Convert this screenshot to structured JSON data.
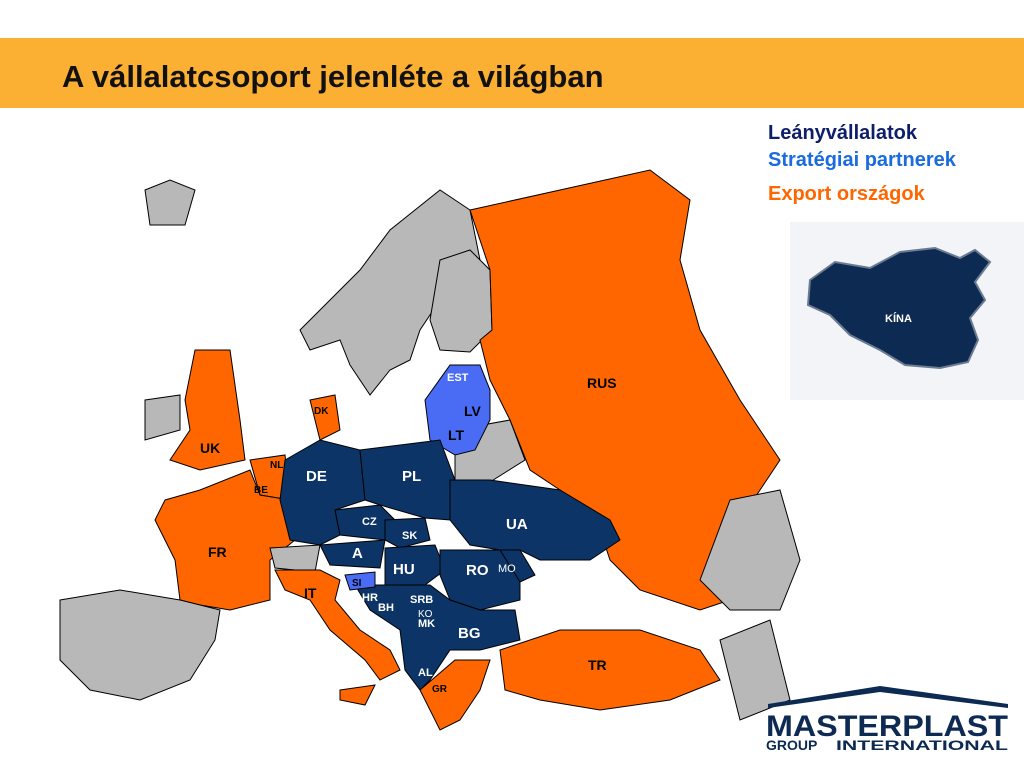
{
  "header": {
    "title": "A vállalatcsoport jelenléte a világban"
  },
  "legend": [
    "Leányvállalatok",
    "Stratégiai partnerek",
    "Export országok"
  ],
  "map": {
    "subsidiaries": [
      "DE",
      "PL",
      "CZ",
      "SK",
      "A",
      "HU",
      "UA",
      "RO",
      "MO",
      "HR",
      "BH",
      "SRB",
      "KO",
      "MK",
      "BG",
      "AL"
    ],
    "partners": [
      "EST",
      "LV",
      "LT",
      "SI"
    ],
    "export": [
      "RUS",
      "UK",
      "NL",
      "BE",
      "DK",
      "FR",
      "IT",
      "GR",
      "TR"
    ]
  },
  "inset": {
    "label": "KÍNA"
  },
  "logo": {
    "name": "MASTERPLAST",
    "group": "GROUP",
    "international": "INTERNATIONAL"
  }
}
